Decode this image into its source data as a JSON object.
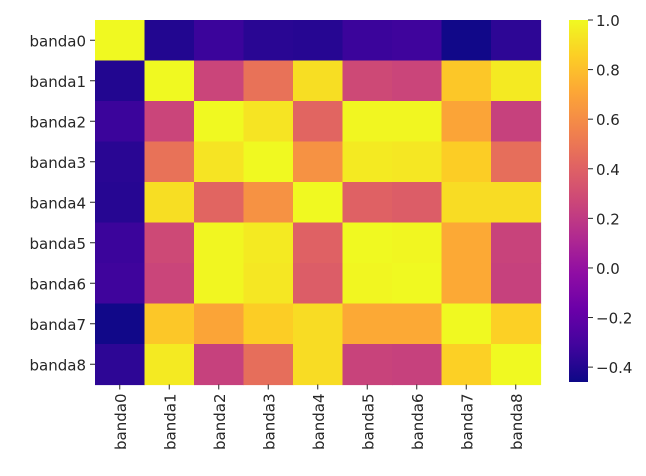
{
  "chart_data": {
    "type": "heatmap",
    "title": "",
    "xlabel": "",
    "ylabel": "",
    "x_categories": [
      "banda0",
      "banda1",
      "banda2",
      "banda3",
      "banda4",
      "banda5",
      "banda6",
      "banda7",
      "banda8"
    ],
    "y_categories": [
      "banda0",
      "banda1",
      "banda2",
      "banda3",
      "banda4",
      "banda5",
      "banda6",
      "banda7",
      "banda8"
    ],
    "values": [
      [
        1.0,
        -0.4,
        -0.33,
        -0.38,
        -0.39,
        -0.33,
        -0.32,
        -0.45,
        -0.37
      ],
      [
        -0.4,
        1.0,
        0.26,
        0.48,
        0.91,
        0.28,
        0.26,
        0.83,
        0.95
      ],
      [
        -0.33,
        0.26,
        1.0,
        0.93,
        0.42,
        0.99,
        0.99,
        0.7,
        0.24
      ],
      [
        -0.38,
        0.48,
        0.93,
        1.0,
        0.62,
        0.95,
        0.94,
        0.85,
        0.46
      ],
      [
        -0.39,
        0.91,
        0.42,
        0.62,
        1.0,
        0.4,
        0.38,
        0.9,
        0.9
      ],
      [
        -0.33,
        0.28,
        0.99,
        0.95,
        0.4,
        1.0,
        0.99,
        0.72,
        0.25
      ],
      [
        -0.32,
        0.26,
        0.99,
        0.94,
        0.38,
        0.99,
        1.0,
        0.72,
        0.24
      ],
      [
        -0.45,
        0.83,
        0.7,
        0.85,
        0.9,
        0.72,
        0.72,
        1.0,
        0.86
      ],
      [
        -0.37,
        0.95,
        0.24,
        0.46,
        0.9,
        0.25,
        0.24,
        0.86,
        1.0
      ]
    ],
    "colorbar": {
      "vmin": -0.46,
      "vmax": 1.0,
      "ticks": [
        1.0,
        0.8,
        0.6,
        0.4,
        0.2,
        0.0,
        -0.2,
        -0.4
      ],
      "tick_labels": [
        "1.0",
        "0.8",
        "0.6",
        "0.4",
        "0.2",
        "0.0",
        "−0.2",
        "−0.4"
      ]
    },
    "colormap": "plasma",
    "grid": false
  }
}
